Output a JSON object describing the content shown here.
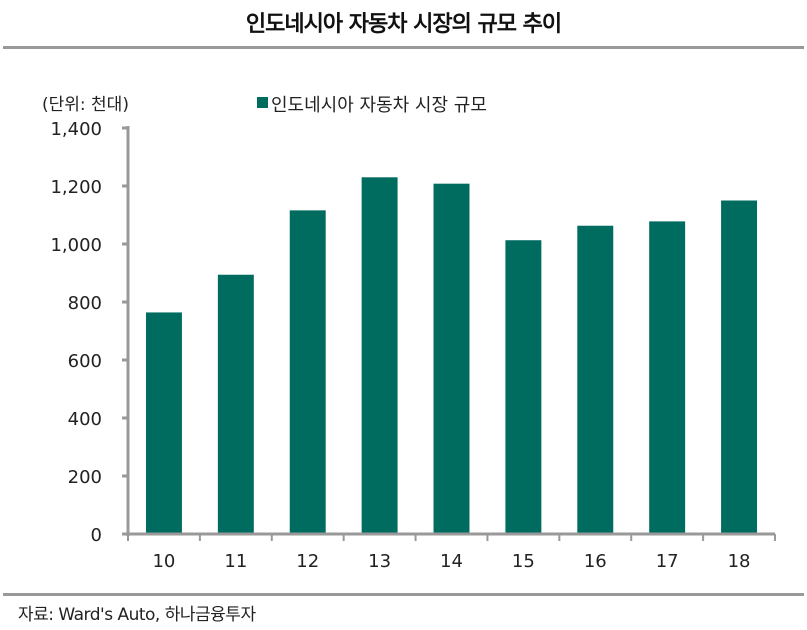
{
  "chart_data": {
    "type": "bar",
    "title": "인도네시아 자동차 시장의 규모 추이",
    "unit_label": "(단위: 천대)",
    "categories": [
      "10",
      "11",
      "12",
      "13",
      "14",
      "15",
      "16",
      "17",
      "18"
    ],
    "series": [
      {
        "name": "인도네시아 자동차 시장 규모",
        "values": [
          764,
          894,
          1116,
          1230,
          1208,
          1013,
          1063,
          1078,
          1150
        ],
        "color": "#006B5F"
      }
    ],
    "yticks": [
      "0",
      "200",
      "400",
      "600",
      "800",
      "1,000",
      "1,200",
      "1,400"
    ],
    "ylim": [
      0,
      1400
    ],
    "legend_position": "top",
    "grid": false,
    "source": "자료: Ward's Auto, 하나금융투자"
  }
}
